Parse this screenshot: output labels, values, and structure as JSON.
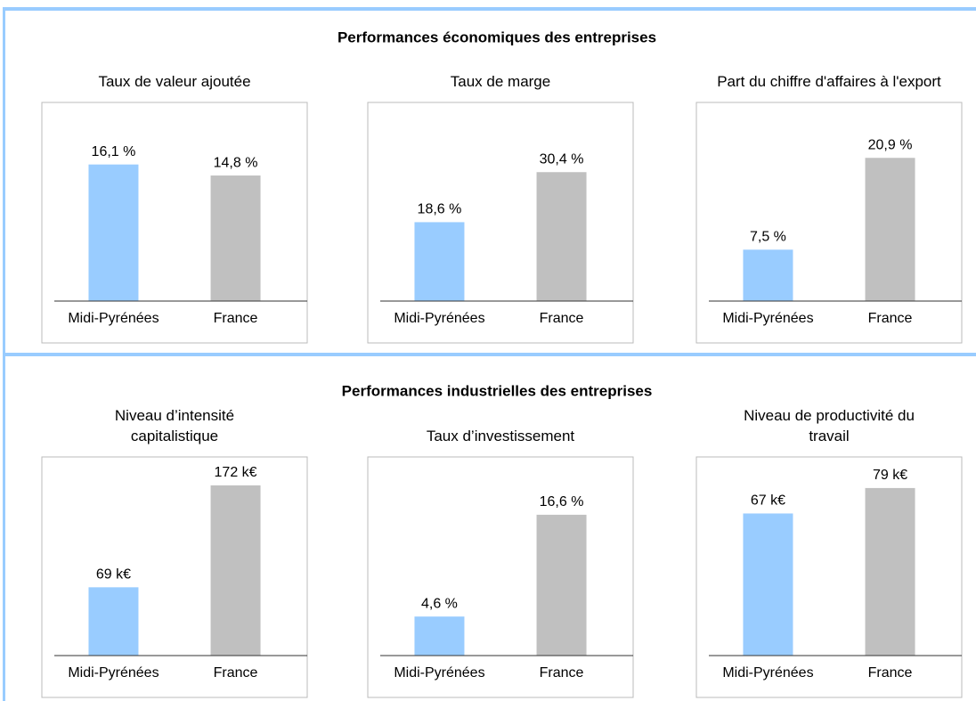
{
  "panels": [
    {
      "title": "Performances économiques des entreprises"
    },
    {
      "title": "Performances industrielles des entreprises"
    }
  ],
  "chart_data": [
    {
      "type": "bar",
      "title": "Taux de valeur ajoutée",
      "categories": [
        "Midi-Pyrénées",
        "France"
      ],
      "values": [
        16.1,
        14.8
      ],
      "value_labels": [
        "16,1 %",
        "14,8 %"
      ],
      "colors": [
        "#99ccff",
        "#c0c0c0"
      ],
      "ylim": [
        0,
        21
      ]
    },
    {
      "type": "bar",
      "title": "Taux de marge",
      "categories": [
        "Midi-Pyrénées",
        "France"
      ],
      "values": [
        18.6,
        30.4
      ],
      "value_labels": [
        "18,6 %",
        "30,4 %"
      ],
      "colors": [
        "#99ccff",
        "#c0c0c0"
      ],
      "ylim": [
        0,
        42
      ]
    },
    {
      "type": "bar",
      "title": "Part du chiffre d'affaires à l'export",
      "categories": [
        "Midi-Pyrénées",
        "France"
      ],
      "values": [
        7.5,
        20.9
      ],
      "value_labels": [
        "7,5 %",
        "20,9 %"
      ],
      "colors": [
        "#99ccff",
        "#c0c0c0"
      ],
      "ylim": [
        0,
        26
      ]
    },
    {
      "type": "bar",
      "title": "Niveau d’intensité capitalistique",
      "categories": [
        "Midi-Pyrénées",
        "France"
      ],
      "values": [
        69,
        172
      ],
      "value_labels": [
        "69 k€",
        "172 k€"
      ],
      "colors": [
        "#99ccff",
        "#c0c0c0"
      ],
      "ylim": [
        0,
        180
      ]
    },
    {
      "type": "bar",
      "title": "Taux d’investissement",
      "categories": [
        "Midi-Pyrénées",
        "France"
      ],
      "values": [
        4.6,
        16.6
      ],
      "value_labels": [
        "4,6 %",
        "16,6 %"
      ],
      "colors": [
        "#99ccff",
        "#c0c0c0"
      ],
      "ylim": [
        0,
        21
      ]
    },
    {
      "type": "bar",
      "title": "Niveau de productivité du travail",
      "categories": [
        "Midi-Pyrénées",
        "France"
      ],
      "values": [
        67,
        79
      ],
      "value_labels": [
        "67 k€",
        "79 k€"
      ],
      "colors": [
        "#99ccff",
        "#c0c0c0"
      ],
      "ylim": [
        0,
        84
      ]
    }
  ]
}
